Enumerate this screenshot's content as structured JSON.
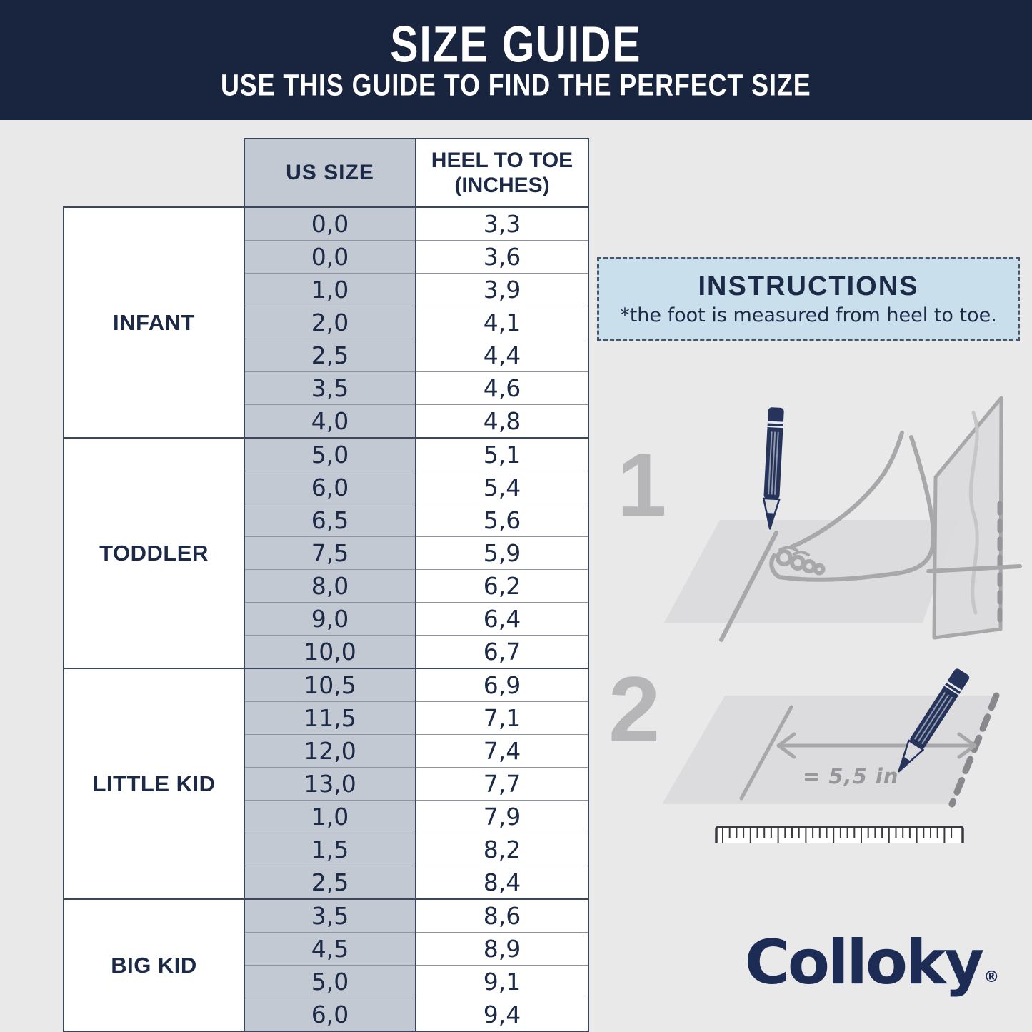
{
  "header": {
    "title": "SIZE GUIDE",
    "subtitle": "USE THIS GUIDE TO FIND THE PERFECT SIZE"
  },
  "table": {
    "header": {
      "us": "US SIZE",
      "heel_line1": "HEEL TO TOE",
      "heel_line2": "(INCHES)"
    },
    "groups": [
      {
        "label": "INFANT",
        "rows": [
          {
            "us_size": "0,0",
            "heel_to_toe_inches": "3,3"
          },
          {
            "us_size": "0,0",
            "heel_to_toe_inches": "3,6"
          },
          {
            "us_size": "1,0",
            "heel_to_toe_inches": "3,9"
          },
          {
            "us_size": "2,0",
            "heel_to_toe_inches": "4,1"
          },
          {
            "us_size": "2,5",
            "heel_to_toe_inches": "4,4"
          },
          {
            "us_size": "3,5",
            "heel_to_toe_inches": "4,6"
          },
          {
            "us_size": "4,0",
            "heel_to_toe_inches": "4,8"
          }
        ]
      },
      {
        "label": "TODDLER",
        "rows": [
          {
            "us_size": "5,0",
            "heel_to_toe_inches": "5,1"
          },
          {
            "us_size": "6,0",
            "heel_to_toe_inches": "5,4"
          },
          {
            "us_size": "6,5",
            "heel_to_toe_inches": "5,6"
          },
          {
            "us_size": "7,5",
            "heel_to_toe_inches": "5,9"
          },
          {
            "us_size": "8,0",
            "heel_to_toe_inches": "6,2"
          },
          {
            "us_size": "9,0",
            "heel_to_toe_inches": "6,4"
          },
          {
            "us_size": "10,0",
            "heel_to_toe_inches": "6,7"
          }
        ]
      },
      {
        "label": "LITTLE KID",
        "rows": [
          {
            "us_size": "10,5",
            "heel_to_toe_inches": "6,9"
          },
          {
            "us_size": "11,5",
            "heel_to_toe_inches": "7,1"
          },
          {
            "us_size": "12,0",
            "heel_to_toe_inches": "7,4"
          },
          {
            "us_size": "13,0",
            "heel_to_toe_inches": "7,7"
          },
          {
            "us_size": "1,0",
            "heel_to_toe_inches": "7,9"
          },
          {
            "us_size": "1,5",
            "heel_to_toe_inches": "8,2"
          },
          {
            "us_size": "2,5",
            "heel_to_toe_inches": "8,4"
          }
        ]
      },
      {
        "label": "BIG KID",
        "rows": [
          {
            "us_size": "3,5",
            "heel_to_toe_inches": "8,6"
          },
          {
            "us_size": "4,5",
            "heel_to_toe_inches": "8,9"
          },
          {
            "us_size": "5,0",
            "heel_to_toe_inches": "9,1"
          },
          {
            "us_size": "6,0",
            "heel_to_toe_inches": "9,4"
          }
        ]
      }
    ]
  },
  "instructions": {
    "title": "INSTRUCTIONS",
    "note": "*the foot is measured from heel to toe."
  },
  "steps": [
    {
      "number": "1"
    },
    {
      "number": "2"
    }
  ],
  "measurement": {
    "label": "= 5,5 in"
  },
  "brand": {
    "name": "Colloky",
    "registered": "®"
  },
  "colors": {
    "page_bg": "#e9e9ea",
    "header_bg": "#19243e",
    "text_navy": "#1c2a47",
    "table_border_dark": "#3a4659",
    "table_gray": "#c3c9d3",
    "instructions_bg": "#c9dfeb",
    "illustration_gray": "#a8a8ab",
    "pencil_navy": "#26345c",
    "logo_navy": "#1d2c55"
  }
}
